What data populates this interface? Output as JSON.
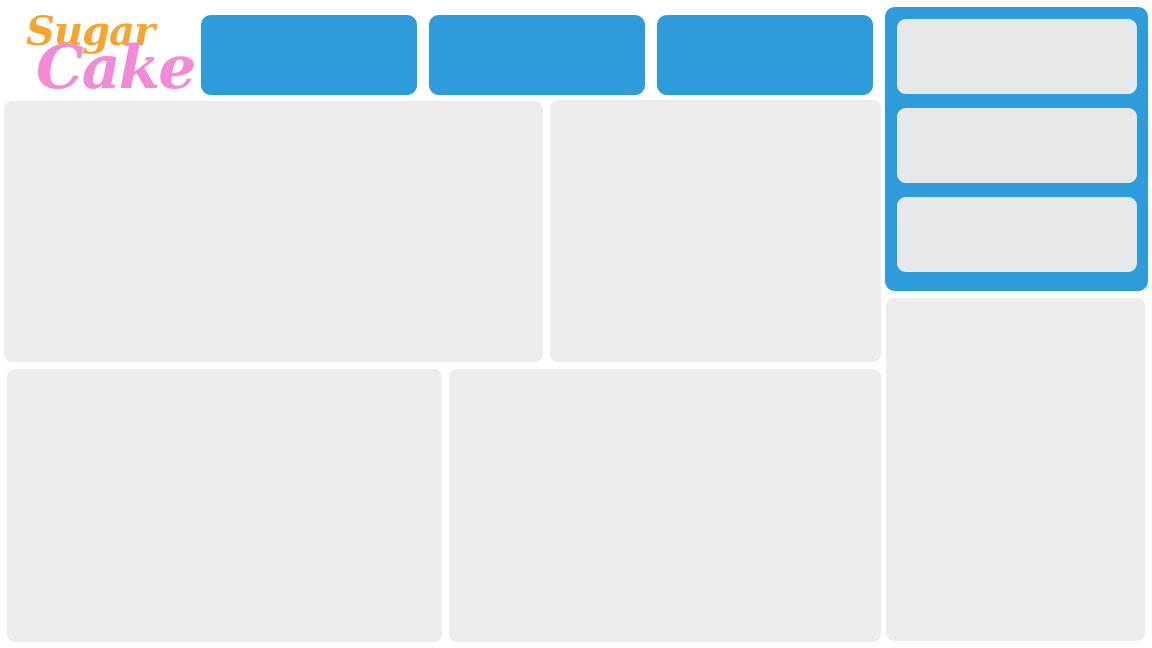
{
  "brand": {
    "word_top": "Sugar",
    "word_bottom": "Cake",
    "colors": {
      "word_top": "#f6a532",
      "word_bottom": "#f28bd6"
    }
  },
  "theme": {
    "accent": "#2e9bdb",
    "panel": "#ededed",
    "menu_item": "#e7e8ea",
    "background": "#ffffff"
  },
  "nav": {
    "buttons": [
      {
        "label": ""
      },
      {
        "label": ""
      },
      {
        "label": ""
      }
    ]
  },
  "side_menu": {
    "items": [
      {
        "label": ""
      },
      {
        "label": ""
      },
      {
        "label": ""
      }
    ]
  }
}
